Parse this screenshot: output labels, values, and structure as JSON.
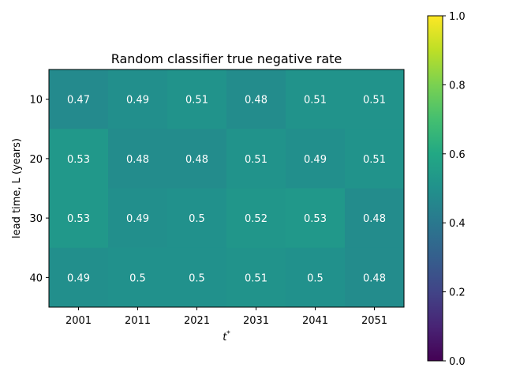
{
  "chart_data": {
    "type": "heatmap",
    "title": "Random classifier true negative rate",
    "xlabel": "t",
    "xlabel_superscript": "*",
    "ylabel": "lead time, L (years)",
    "x_categories": [
      "2001",
      "2011",
      "2021",
      "2031",
      "2041",
      "2051"
    ],
    "y_categories": [
      "10",
      "20",
      "30",
      "40"
    ],
    "values": [
      [
        0.47,
        0.49,
        0.51,
        0.48,
        0.51,
        0.51
      ],
      [
        0.53,
        0.48,
        0.48,
        0.51,
        0.49,
        0.51
      ],
      [
        0.53,
        0.49,
        0.5,
        0.52,
        0.53,
        0.48
      ],
      [
        0.49,
        0.5,
        0.5,
        0.51,
        0.5,
        0.48
      ]
    ],
    "value_labels": [
      [
        "0.47",
        "0.49",
        "0.51",
        "0.48",
        "0.51",
        "0.51"
      ],
      [
        "0.53",
        "0.48",
        "0.48",
        "0.51",
        "0.49",
        "0.51"
      ],
      [
        "0.53",
        "0.49",
        "0.5",
        "0.52",
        "0.53",
        "0.48"
      ],
      [
        "0.49",
        "0.5",
        "0.5",
        "0.51",
        "0.5",
        "0.48"
      ]
    ],
    "colorbar": {
      "colormap": "viridis",
      "range": [
        0.0,
        1.0
      ],
      "ticks": [
        "0.0",
        "0.2",
        "0.4",
        "0.6",
        "0.8",
        "1.0"
      ]
    },
    "grid": false
  }
}
